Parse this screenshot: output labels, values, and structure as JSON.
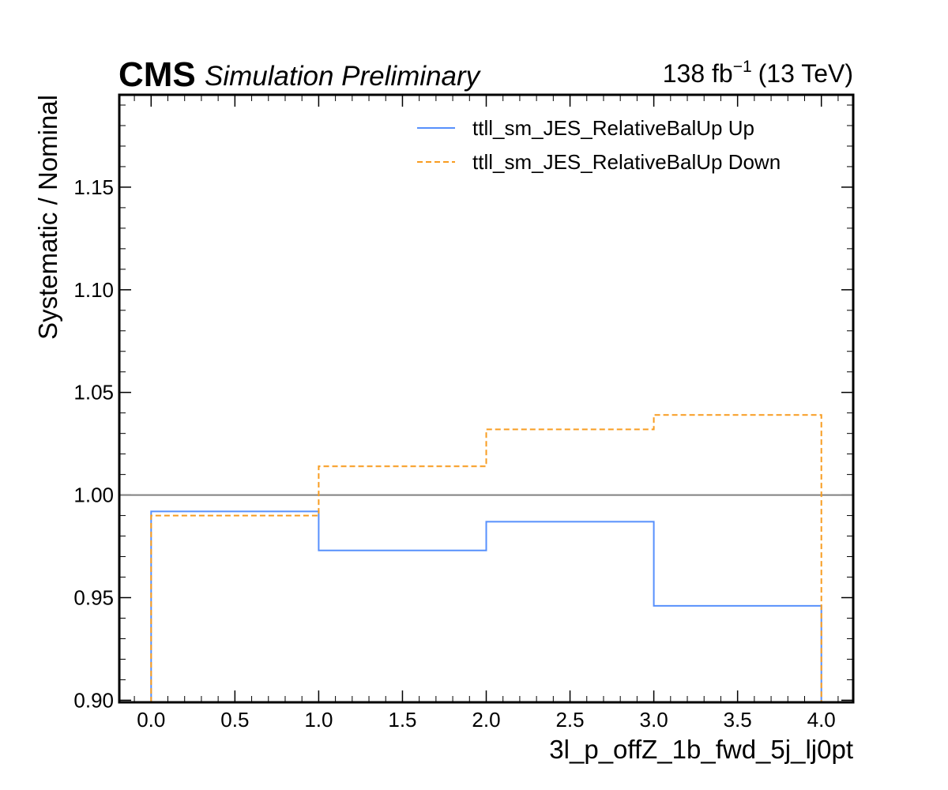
{
  "chart_data": {
    "type": "step",
    "title": "",
    "experiment": "CMS",
    "experiment_label": "Simulation Preliminary",
    "lumi_value": "138 fb",
    "lumi_exponent": "−1",
    "lumi_energy": "(13 TeV)",
    "xlabel": "3l_p_offZ_1b_fwd_5j_lj0pt",
    "ylabel": "Systematic / Nominal",
    "xlim": [
      -0.19,
      4.19
    ],
    "ylim": [
      0.899,
      1.195
    ],
    "x_major_ticks": [
      0.0,
      0.5,
      1.0,
      1.5,
      2.0,
      2.5,
      3.0,
      3.5,
      4.0
    ],
    "x_tick_labels": [
      "0.0",
      "0.5",
      "1.0",
      "1.5",
      "2.0",
      "2.5",
      "3.0",
      "3.5",
      "4.0"
    ],
    "y_major_ticks": [
      0.9,
      0.95,
      1.0,
      1.05,
      1.1,
      1.15
    ],
    "y_tick_labels": [
      "0.90",
      "0.95",
      "1.00",
      "1.05",
      "1.10",
      "1.15"
    ],
    "bin_edges": [
      0,
      1,
      2,
      3,
      4
    ],
    "reference_line": 1.0,
    "legend_position": "top-right",
    "series": [
      {
        "name": "ttll_sm_JES_RelativeBalUp Up",
        "values": [
          0.992,
          0.973,
          0.987,
          0.946
        ],
        "color": "#5790fc",
        "style": "solid"
      },
      {
        "name": "ttll_sm_JES_RelativeBalUp Down",
        "values": [
          0.99,
          1.014,
          1.032,
          1.039
        ],
        "color": "#f89c20",
        "style": "dashed"
      }
    ],
    "reference_color": "#808080"
  }
}
